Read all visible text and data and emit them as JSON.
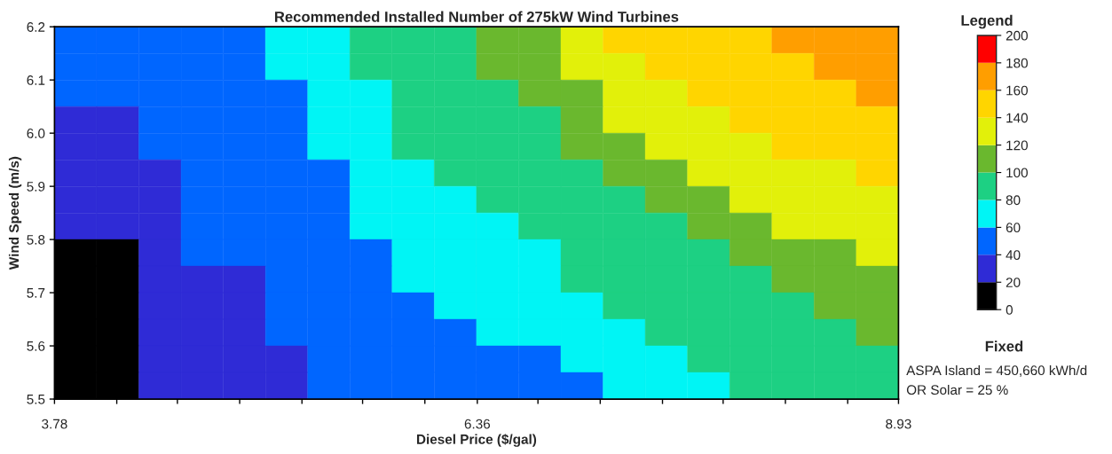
{
  "chart_data": {
    "type": "heatmap",
    "title": "Recommended Installed Number of 275kW Wind Turbines",
    "xlabel": "Diesel Price ($/gal)",
    "ylabel": "Wind Speed (m/s)",
    "clabel": "Legend",
    "annotations": [
      "Fixed",
      "ASPA Island = 450,660 kWh/d",
      "OR Solar = 25 %"
    ],
    "xlim": [
      3.78,
      8.93
    ],
    "xticks": [
      3.78,
      {
        "value": 4.16,
        "label": null
      },
      {
        "value": 4.53,
        "label": null
      },
      {
        "value": 4.91,
        "label": null
      },
      {
        "value": 5.29,
        "label": null
      },
      {
        "value": 5.66,
        "label": null
      },
      {
        "value": 6.04,
        "label": null
      },
      6.36,
      {
        "value": 6.73,
        "label": null
      },
      {
        "value": 7.11,
        "label": null
      },
      {
        "value": 7.49,
        "label": null
      },
      {
        "value": 7.86,
        "label": null
      },
      {
        "value": 8.24,
        "label": null
      },
      {
        "value": 8.62,
        "label": null
      },
      8.93
    ],
    "ylim": [
      5.5,
      6.2
    ],
    "yticks": [
      5.5,
      5.6,
      5.7,
      5.8,
      5.9,
      {
        "value": 6.0,
        "label": "6.0"
      },
      6.1,
      6.2
    ],
    "clim": [
      0,
      200
    ],
    "cticks": [
      0,
      20,
      40,
      60,
      80,
      100,
      120,
      140,
      160,
      180,
      200
    ],
    "colors": [
      "#000000",
      "#2f2bd6",
      "#0066ff",
      "#00f5f5",
      "#1dd083",
      "#6ab82e",
      "#e2f00a",
      "#ffd500",
      "#ff9e00",
      "#ff0000"
    ],
    "cells": [
      [
        50,
        50,
        50,
        50,
        50,
        70,
        70,
        90,
        90,
        90,
        110,
        110,
        130,
        150,
        150,
        150,
        150,
        170,
        170,
        170
      ],
      [
        50,
        50,
        50,
        50,
        50,
        70,
        70,
        90,
        90,
        90,
        110,
        110,
        130,
        130,
        150,
        150,
        150,
        150,
        170,
        170
      ],
      [
        50,
        50,
        50,
        50,
        50,
        50,
        70,
        70,
        90,
        90,
        90,
        110,
        110,
        130,
        130,
        150,
        150,
        150,
        150,
        170
      ],
      [
        30,
        30,
        50,
        50,
        50,
        50,
        70,
        70,
        90,
        90,
        90,
        90,
        110,
        130,
        130,
        130,
        150,
        150,
        150,
        150
      ],
      [
        30,
        30,
        50,
        50,
        50,
        50,
        70,
        70,
        90,
        90,
        90,
        90,
        110,
        110,
        130,
        130,
        130,
        150,
        150,
        150
      ],
      [
        30,
        30,
        30,
        50,
        50,
        50,
        50,
        70,
        70,
        90,
        90,
        90,
        90,
        110,
        110,
        130,
        130,
        130,
        130,
        150
      ],
      [
        30,
        30,
        30,
        50,
        50,
        50,
        50,
        70,
        70,
        70,
        90,
        90,
        90,
        90,
        110,
        110,
        130,
        130,
        130,
        130
      ],
      [
        30,
        30,
        30,
        50,
        50,
        50,
        50,
        70,
        70,
        70,
        70,
        90,
        90,
        90,
        90,
        110,
        110,
        130,
        130,
        130
      ],
      [
        10,
        10,
        30,
        50,
        50,
        50,
        50,
        50,
        70,
        70,
        70,
        70,
        90,
        90,
        90,
        90,
        110,
        110,
        110,
        130
      ],
      [
        10,
        10,
        30,
        30,
        30,
        50,
        50,
        50,
        70,
        70,
        70,
        70,
        90,
        90,
        90,
        90,
        90,
        110,
        110,
        110
      ],
      [
        10,
        10,
        30,
        30,
        30,
        50,
        50,
        50,
        50,
        70,
        70,
        70,
        70,
        90,
        90,
        90,
        90,
        90,
        110,
        110
      ],
      [
        10,
        10,
        30,
        30,
        30,
        50,
        50,
        50,
        50,
        50,
        70,
        70,
        70,
        70,
        90,
        90,
        90,
        90,
        90,
        110
      ],
      [
        10,
        10,
        30,
        30,
        30,
        30,
        50,
        50,
        50,
        50,
        50,
        50,
        70,
        70,
        70,
        90,
        90,
        90,
        90,
        90
      ],
      [
        10,
        10,
        30,
        30,
        30,
        30,
        50,
        50,
        50,
        50,
        50,
        50,
        50,
        70,
        70,
        70,
        90,
        90,
        90,
        90
      ]
    ]
  }
}
